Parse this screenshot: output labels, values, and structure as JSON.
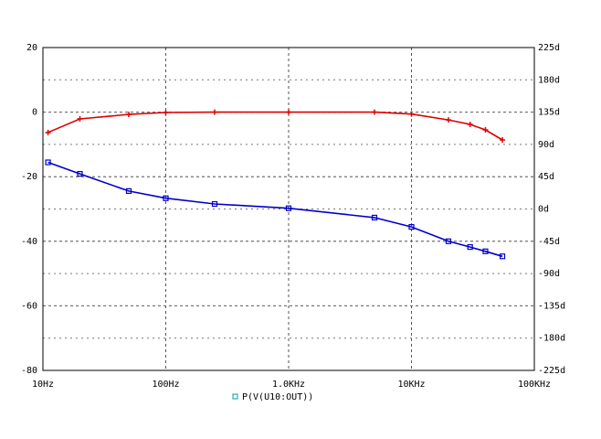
{
  "chart_data": {
    "type": "line",
    "x": [
      11,
      20,
      50,
      100,
      250,
      1000,
      5000,
      10000,
      20000,
      30000,
      40000,
      55000
    ],
    "xscale": "log",
    "xlim": [
      10,
      100000
    ],
    "xticks": [
      {
        "value": 10,
        "label": "10Hz"
      },
      {
        "value": 100,
        "label": "100Hz"
      },
      {
        "value": 1000,
        "label": "1.0KHz"
      },
      {
        "value": 10000,
        "label": "10KHz"
      },
      {
        "value": 100000,
        "label": "100KHz"
      }
    ],
    "ylim": [
      -80,
      20
    ],
    "yticks": [
      20,
      0,
      -20,
      -40,
      -60,
      -80
    ],
    "y2lim": [
      -225,
      225
    ],
    "y2ticks": [
      {
        "value": 225,
        "label": "225d"
      },
      {
        "value": 180,
        "label": "180d"
      },
      {
        "value": 135,
        "label": "135d"
      },
      {
        "value": 90,
        "label": "90d"
      },
      {
        "value": 45,
        "label": "45d"
      },
      {
        "value": 0,
        "label": "0d"
      },
      {
        "value": -45,
        "label": "-45d"
      },
      {
        "value": -90,
        "label": "-90d"
      },
      {
        "value": -135,
        "label": "-135d"
      },
      {
        "value": -180,
        "label": "-180d"
      },
      {
        "value": -225,
        "label": "-225d"
      }
    ],
    "grid": true,
    "legend": "bottom",
    "series": [
      {
        "color": "#e00000",
        "marker": "plus",
        "values": [
          -6.3,
          -2.1,
          -0.7,
          -0.1,
          0,
          0,
          0,
          -0.6,
          -2.4,
          -3.8,
          -5.5,
          -8.6
        ]
      },
      {
        "name": "P(V(U10:OUT))",
        "color": "#0000cc",
        "marker": "square",
        "axis": "y2",
        "values": [
          65,
          49,
          25,
          15,
          7,
          1,
          -12,
          -25,
          -45,
          -53,
          -59,
          -66
        ]
      }
    ]
  }
}
